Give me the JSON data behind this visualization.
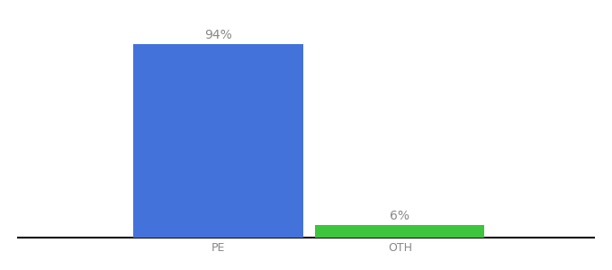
{
  "categories": [
    "PE",
    "OTH"
  ],
  "values": [
    94,
    6
  ],
  "bar_colors": [
    "#4472db",
    "#3dc53d"
  ],
  "label_texts": [
    "94%",
    "6%"
  ],
  "background_color": "#ffffff",
  "text_color": "#888888",
  "axis_line_color": "#111111",
  "ylim": [
    0,
    105
  ],
  "bar_width": 0.28,
  "label_fontsize": 10,
  "tick_fontsize": 9,
  "x_positions": [
    0.38,
    0.68
  ]
}
